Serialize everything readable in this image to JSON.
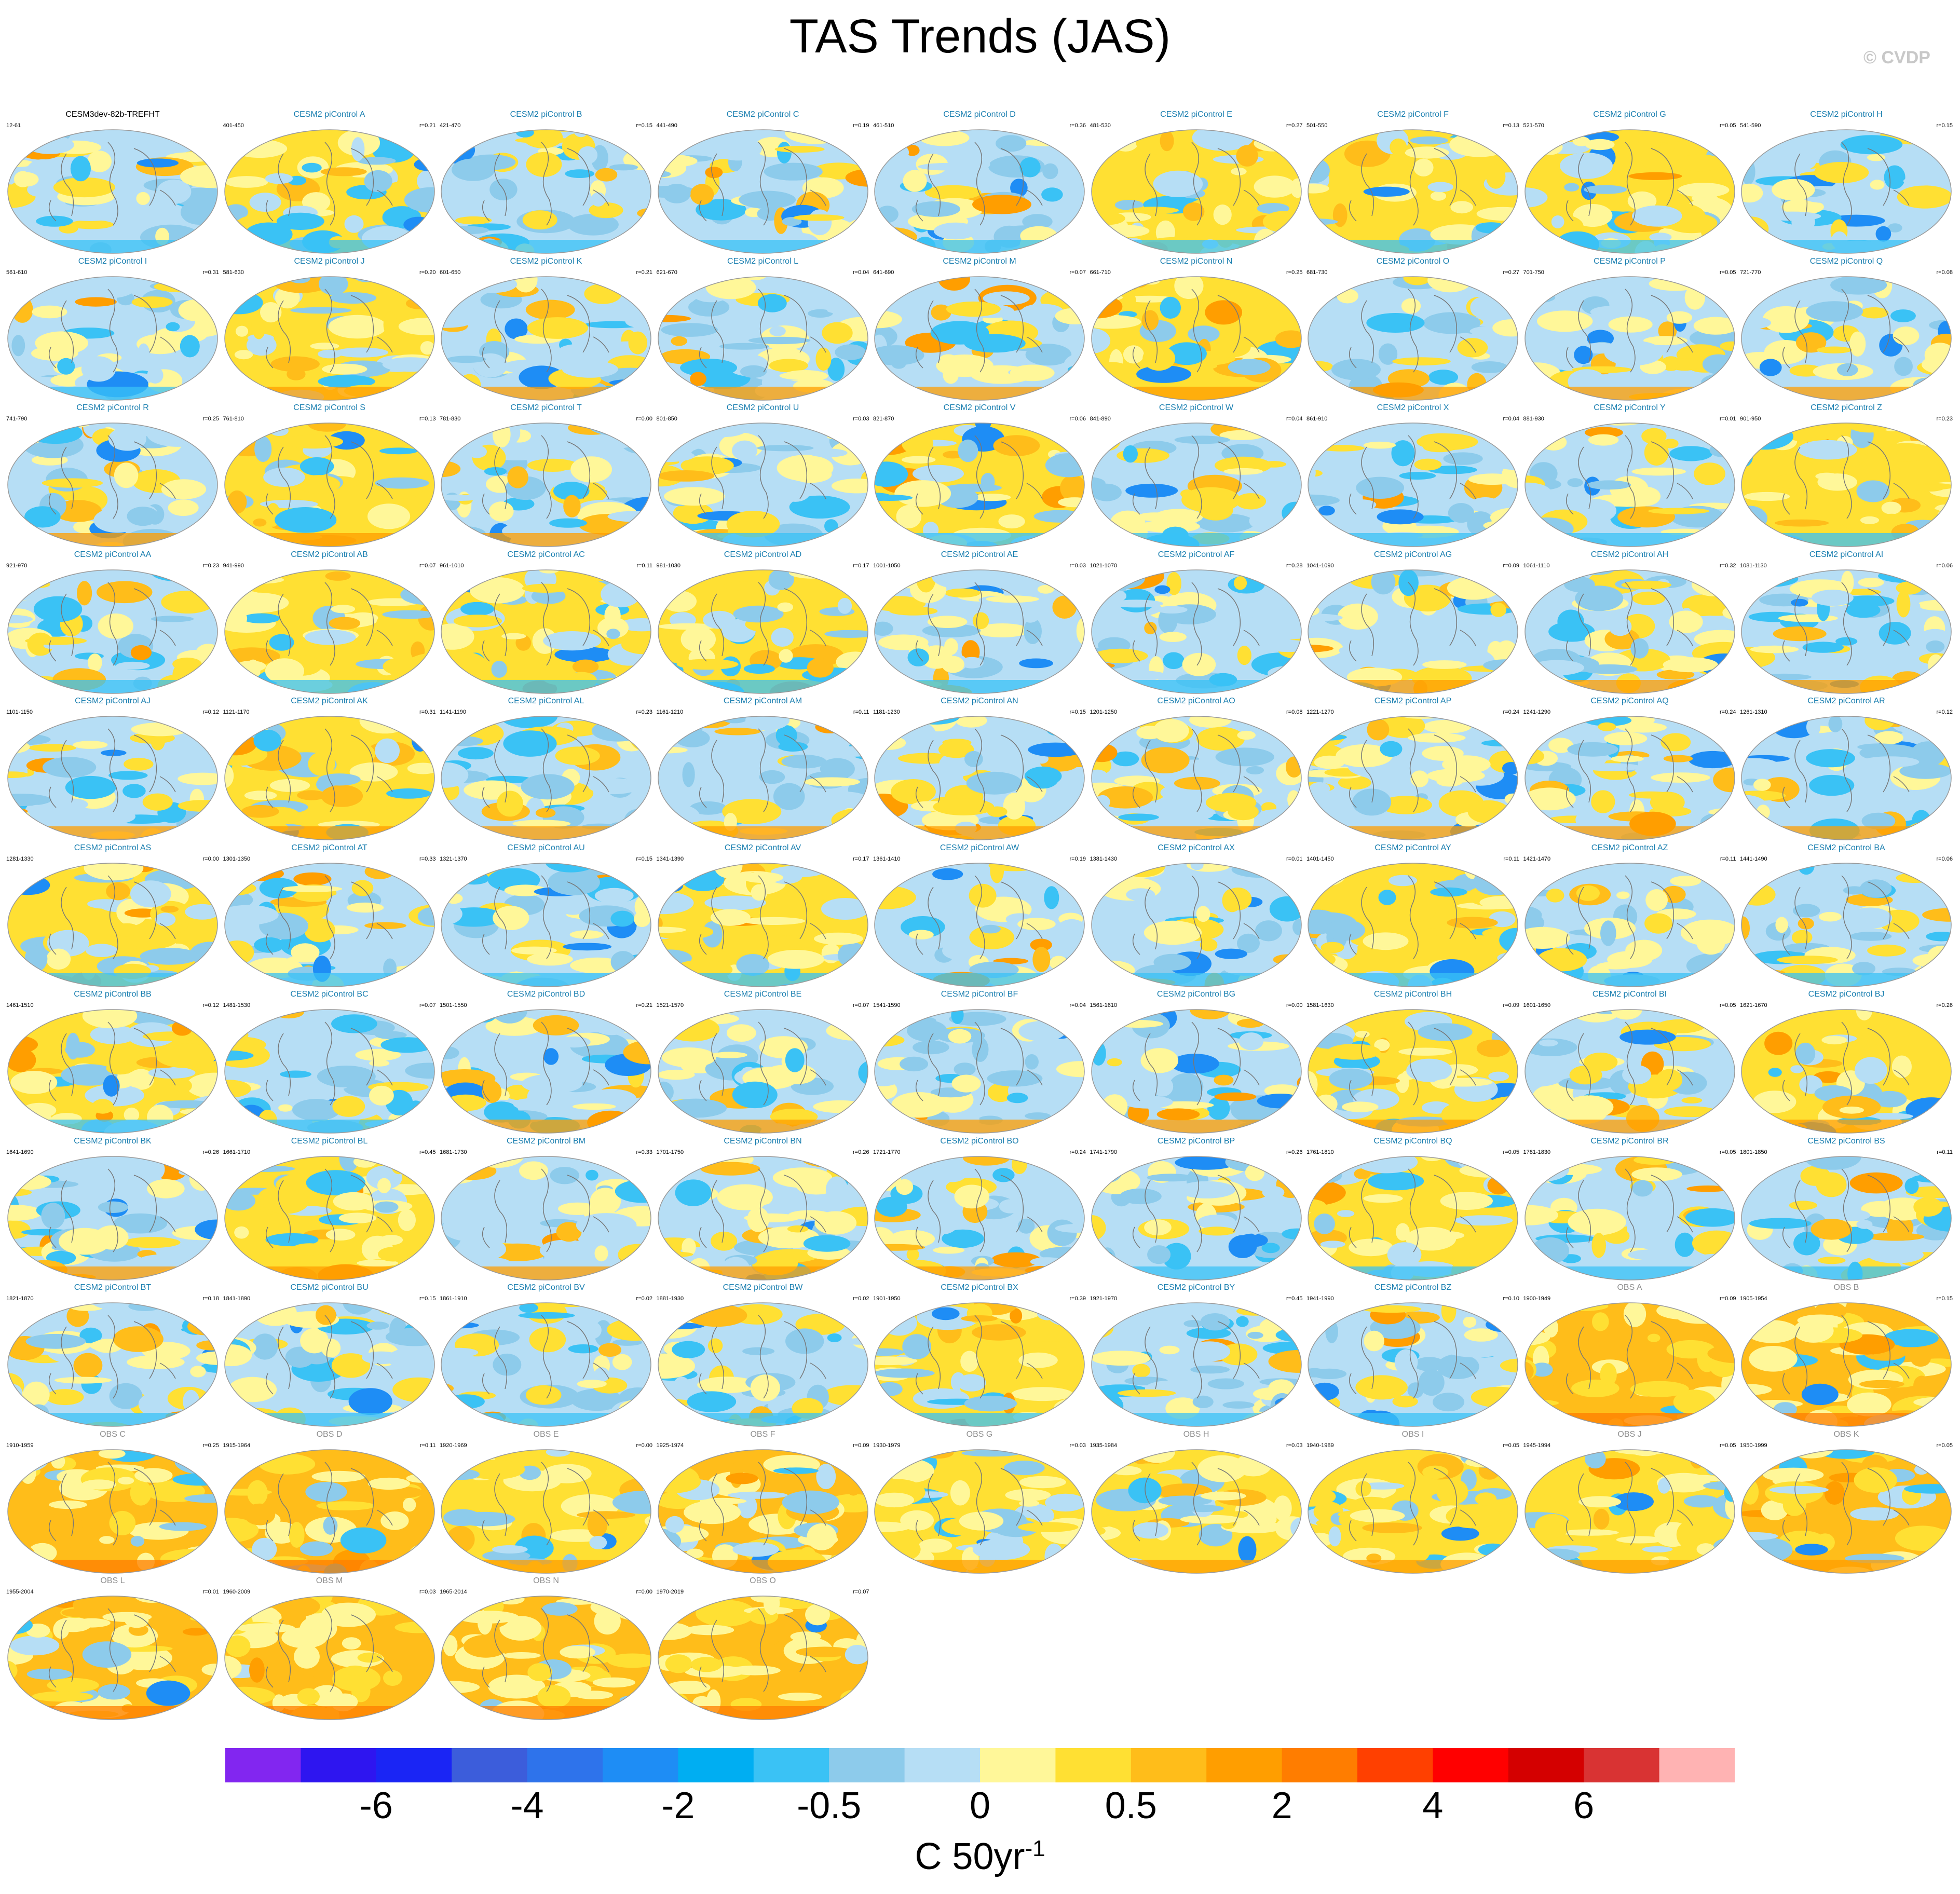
{
  "title": "TAS Trends (JAS)",
  "copyright": "© CVDP",
  "chart_data": {
    "type": "heatmap",
    "title": "TAS Trends (JAS)",
    "projection": "global maps",
    "colorbar": {
      "colors": [
        "#8226f0",
        "#2e15f0",
        "#1a25f5",
        "#3c5ddb",
        "#2e73eb",
        "#1e8df5",
        "#00aef2",
        "#3ac2f5",
        "#8dcbeb",
        "#b6def5",
        "#fff799",
        "#ffe033",
        "#ffbd1a",
        "#ff9e00",
        "#ff7d00",
        "#ff4000",
        "#ff0000",
        "#d40000",
        "#d93333",
        "#ffb3b3"
      ],
      "tick_labels": [
        "-6",
        "-4",
        "-2",
        "-0.5",
        "0",
        "0.5",
        "2",
        "4",
        "6"
      ],
      "units": "C 50yr",
      "units_exp": "-1"
    },
    "panels": [
      {
        "title": "CESM3dev-82b-TREFHT",
        "years": "12-61",
        "r": "",
        "warm": 0.5
      },
      {
        "title": "CESM2 piControl A",
        "years": "401-450",
        "r": "r=0.21",
        "warm": 0.55
      },
      {
        "title": "CESM2 piControl B",
        "years": "421-470",
        "r": "r=0.15",
        "warm": 0.45
      },
      {
        "title": "CESM2 piControl C",
        "years": "441-490",
        "r": "r=0.19",
        "warm": 0.5
      },
      {
        "title": "CESM2 piControl D",
        "years": "461-510",
        "r": "r=0.36",
        "warm": 0.4
      },
      {
        "title": "CESM2 piControl E",
        "years": "481-530",
        "r": "r=0.27",
        "warm": 0.6
      },
      {
        "title": "CESM2 piControl F",
        "years": "501-550",
        "r": "r=0.13",
        "warm": 0.55
      },
      {
        "title": "CESM2 piControl G",
        "years": "521-570",
        "r": "r=0.05",
        "warm": 0.55
      },
      {
        "title": "CESM2 piControl H",
        "years": "541-590",
        "r": "r=0.15",
        "warm": 0.45
      },
      {
        "title": "CESM2 piControl I",
        "years": "561-610",
        "r": "r=0.31",
        "warm": 0.4
      },
      {
        "title": "CESM2 piControl J",
        "years": "581-630",
        "r": "r=0.20",
        "warm": 0.55
      },
      {
        "title": "CESM2 piControl K",
        "years": "601-650",
        "r": "r=0.21",
        "warm": 0.45
      },
      {
        "title": "CESM2 piControl L",
        "years": "621-670",
        "r": "r=0.04",
        "warm": 0.35
      },
      {
        "title": "CESM2 piControl M",
        "years": "641-690",
        "r": "r=0.07",
        "warm": 0.5
      },
      {
        "title": "CESM2 piControl N",
        "years": "661-710",
        "r": "r=0.25",
        "warm": 0.6
      },
      {
        "title": "CESM2 piControl O",
        "years": "681-730",
        "r": "r=0.27",
        "warm": 0.45
      },
      {
        "title": "CESM2 piControl P",
        "years": "701-750",
        "r": "r=0.05",
        "warm": 0.5
      },
      {
        "title": "CESM2 piControl Q",
        "years": "721-770",
        "r": "r=0.08",
        "warm": 0.45
      },
      {
        "title": "CESM2 piControl R",
        "years": "741-790",
        "r": "r=0.25",
        "warm": 0.45
      },
      {
        "title": "CESM2 piControl S",
        "years": "761-810",
        "r": "r=0.13",
        "warm": 0.55
      },
      {
        "title": "CESM2 piControl T",
        "years": "781-830",
        "r": "r=0.00",
        "warm": 0.4
      },
      {
        "title": "CESM2 piControl U",
        "years": "801-850",
        "r": "r=0.03",
        "warm": 0.4
      },
      {
        "title": "CESM2 piControl V",
        "years": "821-870",
        "r": "r=0.06",
        "warm": 0.6
      },
      {
        "title": "CESM2 piControl W",
        "years": "841-890",
        "r": "r=0.04",
        "warm": 0.5
      },
      {
        "title": "CESM2 piControl X",
        "years": "861-910",
        "r": "r=0.04",
        "warm": 0.4
      },
      {
        "title": "CESM2 piControl Y",
        "years": "881-930",
        "r": "r=0.01",
        "warm": 0.45
      },
      {
        "title": "CESM2 piControl Z",
        "years": "901-950",
        "r": "r=0.23",
        "warm": 0.55
      },
      {
        "title": "CESM2 piControl AA",
        "years": "921-970",
        "r": "r=0.23",
        "warm": 0.45
      },
      {
        "title": "CESM2 piControl AB",
        "years": "941-990",
        "r": "r=0.07",
        "warm": 0.6
      },
      {
        "title": "CESM2 piControl AC",
        "years": "961-1010",
        "r": "r=0.11",
        "warm": 0.55
      },
      {
        "title": "CESM2 piControl AD",
        "years": "981-1030",
        "r": "r=0.17",
        "warm": 0.6
      },
      {
        "title": "CESM2 piControl AE",
        "years": "1001-1050",
        "r": "r=0.03",
        "warm": 0.45
      },
      {
        "title": "CESM2 piControl AF",
        "years": "1021-1070",
        "r": "r=0.28",
        "warm": 0.5
      },
      {
        "title": "CESM2 piControl AG",
        "years": "1041-1090",
        "r": "r=0.09",
        "warm": 0.4
      },
      {
        "title": "CESM2 piControl AH",
        "years": "1061-1110",
        "r": "r=0.32",
        "warm": 0.5
      },
      {
        "title": "CESM2 piControl AI",
        "years": "1081-1130",
        "r": "r=0.06",
        "warm": 0.45
      },
      {
        "title": "CESM2 piControl AJ",
        "years": "1101-1150",
        "r": "r=0.12",
        "warm": 0.45
      },
      {
        "title": "CESM2 piControl AK",
        "years": "1121-1170",
        "r": "r=0.31",
        "warm": 0.6
      },
      {
        "title": "CESM2 piControl AL",
        "years": "1141-1190",
        "r": "r=0.23",
        "warm": 0.4
      },
      {
        "title": "CESM2 piControl AM",
        "years": "1161-1210",
        "r": "r=0.11",
        "warm": 0.4
      },
      {
        "title": "CESM2 piControl AN",
        "years": "1181-1230",
        "r": "r=0.15",
        "warm": 0.45
      },
      {
        "title": "CESM2 piControl AO",
        "years": "1201-1250",
        "r": "r=0.08",
        "warm": 0.5
      },
      {
        "title": "CESM2 piControl AP",
        "years": "1221-1270",
        "r": "r=0.24",
        "warm": 0.5
      },
      {
        "title": "CESM2 piControl AQ",
        "years": "1241-1290",
        "r": "r=0.24",
        "warm": 0.4
      },
      {
        "title": "CESM2 piControl AR",
        "years": "1261-1310",
        "r": "r=0.12",
        "warm": 0.45
      },
      {
        "title": "CESM2 piControl AS",
        "years": "1281-1330",
        "r": "r=0.00",
        "warm": 0.6
      },
      {
        "title": "CESM2 piControl AT",
        "years": "1301-1350",
        "r": "r=0.33",
        "warm": 0.5
      },
      {
        "title": "CESM2 piControl AU",
        "years": "1321-1370",
        "r": "r=0.15",
        "warm": 0.45
      },
      {
        "title": "CESM2 piControl AV",
        "years": "1341-1390",
        "r": "r=0.17",
        "warm": 0.55
      },
      {
        "title": "CESM2 piControl AW",
        "years": "1361-1410",
        "r": "r=0.19",
        "warm": 0.45
      },
      {
        "title": "CESM2 piControl AX",
        "years": "1381-1430",
        "r": "r=0.01",
        "warm": 0.4
      },
      {
        "title": "CESM2 piControl AY",
        "years": "1401-1450",
        "r": "r=0.11",
        "warm": 0.55
      },
      {
        "title": "CESM2 piControl AZ",
        "years": "1421-1470",
        "r": "r=0.11",
        "warm": 0.5
      },
      {
        "title": "CESM2 piControl BA",
        "years": "1441-1490",
        "r": "r=0.06",
        "warm": 0.45
      },
      {
        "title": "CESM2 piControl BB",
        "years": "1461-1510",
        "r": "r=0.12",
        "warm": 0.6
      },
      {
        "title": "CESM2 piControl BC",
        "years": "1481-1530",
        "r": "r=0.07",
        "warm": 0.5
      },
      {
        "title": "CESM2 piControl BD",
        "years": "1501-1550",
        "r": "r=0.21",
        "warm": 0.45
      },
      {
        "title": "CESM2 piControl BE",
        "years": "1521-1570",
        "r": "r=0.07",
        "warm": 0.5
      },
      {
        "title": "CESM2 piControl BF",
        "years": "1541-1590",
        "r": "r=0.04",
        "warm": 0.4
      },
      {
        "title": "CESM2 piControl BG",
        "years": "1561-1610",
        "r": "r=0.00",
        "warm": 0.45
      },
      {
        "title": "CESM2 piControl BH",
        "years": "1581-1630",
        "r": "r=0.09",
        "warm": 0.6
      },
      {
        "title": "CESM2 piControl BI",
        "years": "1601-1650",
        "r": "r=0.05",
        "warm": 0.5
      },
      {
        "title": "CESM2 piControl BJ",
        "years": "1621-1670",
        "r": "r=0.26",
        "warm": 0.55
      },
      {
        "title": "CESM2 piControl BK",
        "years": "1641-1690",
        "r": "r=0.26",
        "warm": 0.35
      },
      {
        "title": "CESM2 piControl BL",
        "years": "1661-1710",
        "r": "r=0.45",
        "warm": 0.55
      },
      {
        "title": "CESM2 piControl BM",
        "years": "1681-1730",
        "r": "r=0.33",
        "warm": 0.45
      },
      {
        "title": "CESM2 piControl BN",
        "years": "1701-1750",
        "r": "r=0.26",
        "warm": 0.5
      },
      {
        "title": "CESM2 piControl BO",
        "years": "1721-1770",
        "r": "r=0.24",
        "warm": 0.45
      },
      {
        "title": "CESM2 piControl BP",
        "years": "1741-1790",
        "r": "r=0.26",
        "warm": 0.5
      },
      {
        "title": "CESM2 piControl BQ",
        "years": "1761-1810",
        "r": "r=0.05",
        "warm": 0.55
      },
      {
        "title": "CESM2 piControl BR",
        "years": "1781-1830",
        "r": "r=0.05",
        "warm": 0.45
      },
      {
        "title": "CESM2 piControl BS",
        "years": "1801-1850",
        "r": "r=0.11",
        "warm": 0.45
      },
      {
        "title": "CESM2 piControl BT",
        "years": "1821-1870",
        "r": "r=0.18",
        "warm": 0.45
      },
      {
        "title": "CESM2 piControl BU",
        "years": "1841-1890",
        "r": "r=0.15",
        "warm": 0.5
      },
      {
        "title": "CESM2 piControl BV",
        "years": "1861-1910",
        "r": "r=0.02",
        "warm": 0.4
      },
      {
        "title": "CESM2 piControl BW",
        "years": "1881-1930",
        "r": "r=0.02",
        "warm": 0.5
      },
      {
        "title": "CESM2 piControl BX",
        "years": "1901-1950",
        "r": "r=0.39",
        "warm": 0.55
      },
      {
        "title": "CESM2 piControl BY",
        "years": "1921-1970",
        "r": "r=0.45",
        "warm": 0.35
      },
      {
        "title": "CESM2 piControl BZ",
        "years": "1941-1990",
        "r": "r=0.10",
        "warm": 0.5
      },
      {
        "title": "OBS A",
        "years": "1900-1949",
        "r": "r=0.09",
        "warm": 0.9
      },
      {
        "title": "OBS B",
        "years": "1905-1954",
        "r": "r=0.15",
        "warm": 0.9
      },
      {
        "title": "OBS C",
        "years": "1910-1959",
        "r": "r=0.25",
        "warm": 0.85
      },
      {
        "title": "OBS D",
        "years": "1915-1964",
        "r": "r=0.11",
        "warm": 0.8
      },
      {
        "title": "OBS E",
        "years": "1920-1969",
        "r": "r=0.00",
        "warm": 0.7
      },
      {
        "title": "OBS F",
        "years": "1925-1974",
        "r": "r=0.09",
        "warm": 0.75
      },
      {
        "title": "OBS G",
        "years": "1930-1979",
        "r": "r=0.03",
        "warm": 0.65
      },
      {
        "title": "OBS H",
        "years": "1935-1984",
        "r": "r=0.03",
        "warm": 0.7
      },
      {
        "title": "OBS I",
        "years": "1940-1989",
        "r": "r=0.05",
        "warm": 0.65
      },
      {
        "title": "OBS J",
        "years": "1945-1994",
        "r": "r=0.05",
        "warm": 0.7
      },
      {
        "title": "OBS K",
        "years": "1950-1999",
        "r": "r=0.05",
        "warm": 0.75
      },
      {
        "title": "OBS L",
        "years": "1955-2004",
        "r": "r=0.01",
        "warm": 0.85
      },
      {
        "title": "OBS M",
        "years": "1960-2009",
        "r": "r=0.03",
        "warm": 0.9
      },
      {
        "title": "OBS N",
        "years": "1965-2014",
        "r": "r=0.00",
        "warm": 0.92
      },
      {
        "title": "OBS O",
        "years": "1970-2019",
        "r": "r=0.07",
        "warm": 0.95
      }
    ]
  }
}
